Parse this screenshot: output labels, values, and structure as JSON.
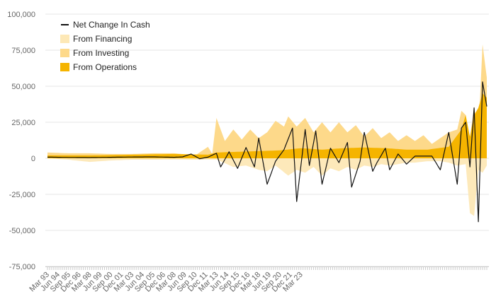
{
  "chart_data": {
    "type": "area",
    "x_unit": "quarter",
    "x_tick_labels": [
      "Mar 93",
      "Jun 94",
      "Sep 95",
      "Dec 96",
      "Mar 98",
      "Jun 99",
      "Sep 00",
      "Dec 01",
      "Mar 03",
      "Jun 04",
      "Sep 05",
      "Dec 06",
      "Mar 08",
      "Jun 09",
      "Sep 10",
      "Dec 11",
      "Mar 13",
      "Jun 14",
      "Sep 15",
      "Dec 16",
      "Mar 18",
      "Jun 19",
      "Sep 20",
      "Dec 21",
      "Mar 23"
    ],
    "y_tick_labels": [
      "100,000",
      "75,000",
      "50,000",
      "25,000",
      "0",
      "-25,000",
      "-50,000",
      "-75,000"
    ],
    "ylim": [
      -75000,
      100000
    ],
    "y_ticks": [
      100000,
      75000,
      50000,
      25000,
      0,
      -25000,
      -50000,
      -75000
    ],
    "grid": true,
    "legend_position": "top-left",
    "colors": {
      "net_change": "#111111",
      "financing": "#fde8b6",
      "investing": "#fdd98a",
      "operations": "#f5b400",
      "grid": "#e6e6e6",
      "axis": "#cccccc"
    },
    "legend": [
      {
        "label": "Net Change In Cash",
        "kind": "line",
        "color": "#111111"
      },
      {
        "label": "From Financing",
        "kind": "area",
        "color": "#fde8b6"
      },
      {
        "label": "From Investing",
        "kind": "area",
        "color": "#fdd98a"
      },
      {
        "label": "From Operations",
        "kind": "area",
        "color": "#f5b400"
      }
    ],
    "series": [
      {
        "name": "Net Change In Cash",
        "keypoints": [
          [
            0,
            800
          ],
          [
            10,
            600
          ],
          [
            20,
            500
          ],
          [
            30,
            700
          ],
          [
            40,
            900
          ],
          [
            50,
            1000
          ],
          [
            56,
            800
          ],
          [
            60,
            700
          ],
          [
            64,
            1000
          ],
          [
            68,
            3000
          ],
          [
            72,
            -300
          ],
          [
            76,
            800
          ],
          [
            80,
            3500
          ],
          [
            82,
            -6000
          ],
          [
            86,
            4500
          ],
          [
            90,
            -7000
          ],
          [
            94,
            7500
          ],
          [
            98,
            -6000
          ],
          [
            100,
            14000
          ],
          [
            104,
            -18000
          ],
          [
            108,
            -2000
          ],
          [
            112,
            6000
          ],
          [
            116,
            21000
          ],
          [
            118,
            -30000
          ],
          [
            122,
            20000
          ],
          [
            124,
            -5000
          ],
          [
            127,
            19000
          ],
          [
            130,
            -18000
          ],
          [
            134,
            7000
          ],
          [
            138,
            -3000
          ],
          [
            142,
            11000
          ],
          [
            144,
            -20000
          ],
          [
            148,
            -2000
          ],
          [
            150,
            18000
          ],
          [
            154,
            -9000
          ],
          [
            156,
            -3000
          ],
          [
            160,
            7000
          ],
          [
            162,
            -8000
          ],
          [
            166,
            3000
          ],
          [
            170,
            -4000
          ],
          [
            174,
            1500
          ],
          [
            178,
            1500
          ],
          [
            182,
            1500
          ],
          [
            186,
            -8000
          ],
          [
            190,
            18000
          ],
          [
            194,
            -18000
          ],
          [
            196,
            21000
          ],
          [
            198,
            25000
          ],
          [
            200,
            -6000
          ],
          [
            202,
            35000
          ],
          [
            204,
            -44000
          ],
          [
            206,
            53000
          ],
          [
            208,
            36000
          ]
        ]
      },
      {
        "name": "From Financing",
        "keypoints": [
          [
            0,
            0
          ],
          [
            10,
            -1000
          ],
          [
            20,
            -2500
          ],
          [
            30,
            -1500
          ],
          [
            40,
            -1000
          ],
          [
            50,
            -1000
          ],
          [
            60,
            -800
          ],
          [
            70,
            -1000
          ],
          [
            80,
            -800
          ],
          [
            88,
            -6000
          ],
          [
            94,
            -5000
          ],
          [
            100,
            -8000
          ],
          [
            104,
            -9000
          ],
          [
            108,
            -5000
          ],
          [
            114,
            -12000
          ],
          [
            118,
            -8000
          ],
          [
            122,
            -10000
          ],
          [
            126,
            -6000
          ],
          [
            130,
            -12000
          ],
          [
            134,
            -7000
          ],
          [
            138,
            -9000
          ],
          [
            142,
            -6000
          ],
          [
            146,
            -8000
          ],
          [
            150,
            -5000
          ],
          [
            154,
            -6000
          ],
          [
            158,
            -4000
          ],
          [
            162,
            -5000
          ],
          [
            166,
            -4000
          ],
          [
            170,
            -3000
          ],
          [
            174,
            -3000
          ],
          [
            180,
            -2000
          ],
          [
            186,
            -2000
          ],
          [
            190,
            -3000
          ],
          [
            194,
            -5000
          ],
          [
            198,
            -4000
          ],
          [
            200,
            -38000
          ],
          [
            202,
            -40000
          ],
          [
            204,
            -8000
          ],
          [
            206,
            -10000
          ],
          [
            208,
            -5000
          ]
        ]
      },
      {
        "name": "From Investing",
        "keypoints": [
          [
            0,
            4000
          ],
          [
            10,
            3500
          ],
          [
            20,
            3500
          ],
          [
            30,
            3000
          ],
          [
            40,
            3000
          ],
          [
            50,
            3500
          ],
          [
            60,
            3500
          ],
          [
            70,
            2000
          ],
          [
            76,
            8000
          ],
          [
            78,
            3000
          ],
          [
            80,
            28000
          ],
          [
            84,
            12000
          ],
          [
            88,
            20000
          ],
          [
            92,
            13000
          ],
          [
            96,
            20000
          ],
          [
            100,
            14000
          ],
          [
            104,
            18000
          ],
          [
            108,
            26000
          ],
          [
            112,
            22000
          ],
          [
            114,
            29000
          ],
          [
            118,
            22000
          ],
          [
            122,
            28000
          ],
          [
            126,
            18000
          ],
          [
            130,
            25000
          ],
          [
            134,
            18000
          ],
          [
            138,
            25000
          ],
          [
            142,
            18000
          ],
          [
            146,
            23000
          ],
          [
            150,
            15000
          ],
          [
            154,
            21000
          ],
          [
            158,
            14000
          ],
          [
            162,
            18000
          ],
          [
            166,
            12000
          ],
          [
            170,
            16000
          ],
          [
            174,
            12000
          ],
          [
            178,
            16000
          ],
          [
            182,
            10000
          ],
          [
            186,
            14000
          ],
          [
            190,
            18000
          ],
          [
            194,
            20000
          ],
          [
            196,
            33000
          ],
          [
            198,
            30000
          ],
          [
            200,
            14000
          ],
          [
            202,
            36000
          ],
          [
            204,
            18000
          ],
          [
            206,
            79000
          ],
          [
            208,
            56000
          ]
        ]
      },
      {
        "name": "From Operations",
        "keypoints": [
          [
            0,
            2000
          ],
          [
            20,
            2000
          ],
          [
            40,
            2500
          ],
          [
            60,
            3000
          ],
          [
            76,
            2500
          ],
          [
            80,
            4000
          ],
          [
            90,
            4500
          ],
          [
            100,
            5000
          ],
          [
            110,
            5500
          ],
          [
            120,
            7000
          ],
          [
            130,
            6000
          ],
          [
            140,
            7000
          ],
          [
            150,
            7500
          ],
          [
            160,
            7000
          ],
          [
            170,
            6000
          ],
          [
            180,
            6000
          ],
          [
            190,
            8000
          ],
          [
            196,
            20000
          ],
          [
            198,
            30000
          ],
          [
            200,
            15000
          ],
          [
            202,
            30000
          ],
          [
            204,
            35000
          ],
          [
            206,
            45000
          ],
          [
            208,
            42000
          ]
        ]
      }
    ]
  }
}
